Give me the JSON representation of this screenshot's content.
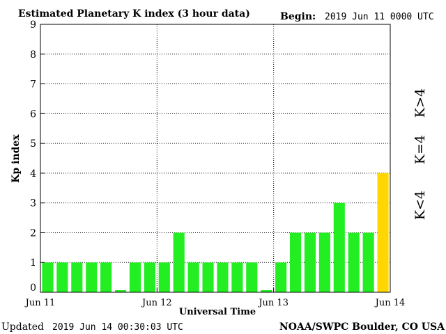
{
  "header": {
    "title": "Estimated Planetary K index (3 hour data)",
    "begin_label": "Begin:",
    "begin_value": "2019 Jun 11 0000 UTC"
  },
  "footer": {
    "updated_label": "Updated",
    "updated_value": "2019 Jun 14 00:30:03 UTC",
    "source": "NOAA/SWPC Boulder, CO USA"
  },
  "legend": {
    "below": "K<4",
    "equal": "K=4",
    "above": "K>4"
  },
  "colors": {
    "below": "#22ee22",
    "equal": "#ffd700",
    "above": "#ff3a10"
  },
  "chart_data": {
    "type": "bar",
    "title": "Estimated Planetary K index (3 hour data)",
    "xlabel": "Universal Time",
    "ylabel": "Kp index",
    "ylim": [
      0,
      9
    ],
    "yticks": [
      "0",
      "1",
      "2",
      "3",
      "4",
      "5",
      "6",
      "7",
      "8",
      "9"
    ],
    "xticks": [
      "Jun 11",
      "Jun 12",
      "Jun 13",
      "Jun 14"
    ],
    "grid": true,
    "values": [
      1,
      1,
      1,
      1,
      1,
      0.07,
      1,
      1,
      1,
      2,
      1,
      1,
      1,
      1,
      1,
      0.07,
      1,
      2,
      2,
      2,
      3,
      2,
      2,
      4
    ]
  }
}
